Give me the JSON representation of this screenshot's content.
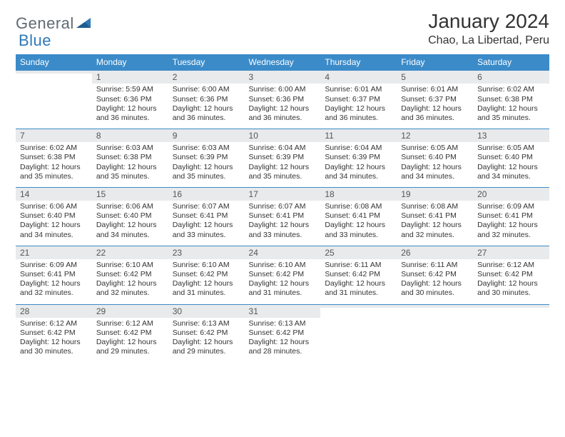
{
  "logo": {
    "general": "General",
    "blue": "Blue"
  },
  "title": "January 2024",
  "location": "Chao, La Libertad, Peru",
  "colors": {
    "header_bg": "#3b8bc9",
    "header_text": "#ffffff",
    "daynum_bg": "#e9eaeb",
    "border": "#3b8bc9",
    "body_text": "#333333",
    "logo_gray": "#5f6a72",
    "logo_blue": "#2f78b7"
  },
  "typography": {
    "title_fontsize": 28,
    "location_fontsize": 16,
    "dow_fontsize": 12,
    "cell_fontsize": 10.5
  },
  "dow": [
    "Sunday",
    "Monday",
    "Tuesday",
    "Wednesday",
    "Thursday",
    "Friday",
    "Saturday"
  ],
  "weeks": [
    [
      null,
      {
        "n": "1",
        "sr": "Sunrise: 5:59 AM",
        "ss": "Sunset: 6:36 PM",
        "d1": "Daylight: 12 hours",
        "d2": "and 36 minutes."
      },
      {
        "n": "2",
        "sr": "Sunrise: 6:00 AM",
        "ss": "Sunset: 6:36 PM",
        "d1": "Daylight: 12 hours",
        "d2": "and 36 minutes."
      },
      {
        "n": "3",
        "sr": "Sunrise: 6:00 AM",
        "ss": "Sunset: 6:36 PM",
        "d1": "Daylight: 12 hours",
        "d2": "and 36 minutes."
      },
      {
        "n": "4",
        "sr": "Sunrise: 6:01 AM",
        "ss": "Sunset: 6:37 PM",
        "d1": "Daylight: 12 hours",
        "d2": "and 36 minutes."
      },
      {
        "n": "5",
        "sr": "Sunrise: 6:01 AM",
        "ss": "Sunset: 6:37 PM",
        "d1": "Daylight: 12 hours",
        "d2": "and 36 minutes."
      },
      {
        "n": "6",
        "sr": "Sunrise: 6:02 AM",
        "ss": "Sunset: 6:38 PM",
        "d1": "Daylight: 12 hours",
        "d2": "and 35 minutes."
      }
    ],
    [
      {
        "n": "7",
        "sr": "Sunrise: 6:02 AM",
        "ss": "Sunset: 6:38 PM",
        "d1": "Daylight: 12 hours",
        "d2": "and 35 minutes."
      },
      {
        "n": "8",
        "sr": "Sunrise: 6:03 AM",
        "ss": "Sunset: 6:38 PM",
        "d1": "Daylight: 12 hours",
        "d2": "and 35 minutes."
      },
      {
        "n": "9",
        "sr": "Sunrise: 6:03 AM",
        "ss": "Sunset: 6:39 PM",
        "d1": "Daylight: 12 hours",
        "d2": "and 35 minutes."
      },
      {
        "n": "10",
        "sr": "Sunrise: 6:04 AM",
        "ss": "Sunset: 6:39 PM",
        "d1": "Daylight: 12 hours",
        "d2": "and 35 minutes."
      },
      {
        "n": "11",
        "sr": "Sunrise: 6:04 AM",
        "ss": "Sunset: 6:39 PM",
        "d1": "Daylight: 12 hours",
        "d2": "and 34 minutes."
      },
      {
        "n": "12",
        "sr": "Sunrise: 6:05 AM",
        "ss": "Sunset: 6:40 PM",
        "d1": "Daylight: 12 hours",
        "d2": "and 34 minutes."
      },
      {
        "n": "13",
        "sr": "Sunrise: 6:05 AM",
        "ss": "Sunset: 6:40 PM",
        "d1": "Daylight: 12 hours",
        "d2": "and 34 minutes."
      }
    ],
    [
      {
        "n": "14",
        "sr": "Sunrise: 6:06 AM",
        "ss": "Sunset: 6:40 PM",
        "d1": "Daylight: 12 hours",
        "d2": "and 34 minutes."
      },
      {
        "n": "15",
        "sr": "Sunrise: 6:06 AM",
        "ss": "Sunset: 6:40 PM",
        "d1": "Daylight: 12 hours",
        "d2": "and 34 minutes."
      },
      {
        "n": "16",
        "sr": "Sunrise: 6:07 AM",
        "ss": "Sunset: 6:41 PM",
        "d1": "Daylight: 12 hours",
        "d2": "and 33 minutes."
      },
      {
        "n": "17",
        "sr": "Sunrise: 6:07 AM",
        "ss": "Sunset: 6:41 PM",
        "d1": "Daylight: 12 hours",
        "d2": "and 33 minutes."
      },
      {
        "n": "18",
        "sr": "Sunrise: 6:08 AM",
        "ss": "Sunset: 6:41 PM",
        "d1": "Daylight: 12 hours",
        "d2": "and 33 minutes."
      },
      {
        "n": "19",
        "sr": "Sunrise: 6:08 AM",
        "ss": "Sunset: 6:41 PM",
        "d1": "Daylight: 12 hours",
        "d2": "and 32 minutes."
      },
      {
        "n": "20",
        "sr": "Sunrise: 6:09 AM",
        "ss": "Sunset: 6:41 PM",
        "d1": "Daylight: 12 hours",
        "d2": "and 32 minutes."
      }
    ],
    [
      {
        "n": "21",
        "sr": "Sunrise: 6:09 AM",
        "ss": "Sunset: 6:41 PM",
        "d1": "Daylight: 12 hours",
        "d2": "and 32 minutes."
      },
      {
        "n": "22",
        "sr": "Sunrise: 6:10 AM",
        "ss": "Sunset: 6:42 PM",
        "d1": "Daylight: 12 hours",
        "d2": "and 32 minutes."
      },
      {
        "n": "23",
        "sr": "Sunrise: 6:10 AM",
        "ss": "Sunset: 6:42 PM",
        "d1": "Daylight: 12 hours",
        "d2": "and 31 minutes."
      },
      {
        "n": "24",
        "sr": "Sunrise: 6:10 AM",
        "ss": "Sunset: 6:42 PM",
        "d1": "Daylight: 12 hours",
        "d2": "and 31 minutes."
      },
      {
        "n": "25",
        "sr": "Sunrise: 6:11 AM",
        "ss": "Sunset: 6:42 PM",
        "d1": "Daylight: 12 hours",
        "d2": "and 31 minutes."
      },
      {
        "n": "26",
        "sr": "Sunrise: 6:11 AM",
        "ss": "Sunset: 6:42 PM",
        "d1": "Daylight: 12 hours",
        "d2": "and 30 minutes."
      },
      {
        "n": "27",
        "sr": "Sunrise: 6:12 AM",
        "ss": "Sunset: 6:42 PM",
        "d1": "Daylight: 12 hours",
        "d2": "and 30 minutes."
      }
    ],
    [
      {
        "n": "28",
        "sr": "Sunrise: 6:12 AM",
        "ss": "Sunset: 6:42 PM",
        "d1": "Daylight: 12 hours",
        "d2": "and 30 minutes."
      },
      {
        "n": "29",
        "sr": "Sunrise: 6:12 AM",
        "ss": "Sunset: 6:42 PM",
        "d1": "Daylight: 12 hours",
        "d2": "and 29 minutes."
      },
      {
        "n": "30",
        "sr": "Sunrise: 6:13 AM",
        "ss": "Sunset: 6:42 PM",
        "d1": "Daylight: 12 hours",
        "d2": "and 29 minutes."
      },
      {
        "n": "31",
        "sr": "Sunrise: 6:13 AM",
        "ss": "Sunset: 6:42 PM",
        "d1": "Daylight: 12 hours",
        "d2": "and 28 minutes."
      },
      null,
      null,
      null
    ]
  ]
}
